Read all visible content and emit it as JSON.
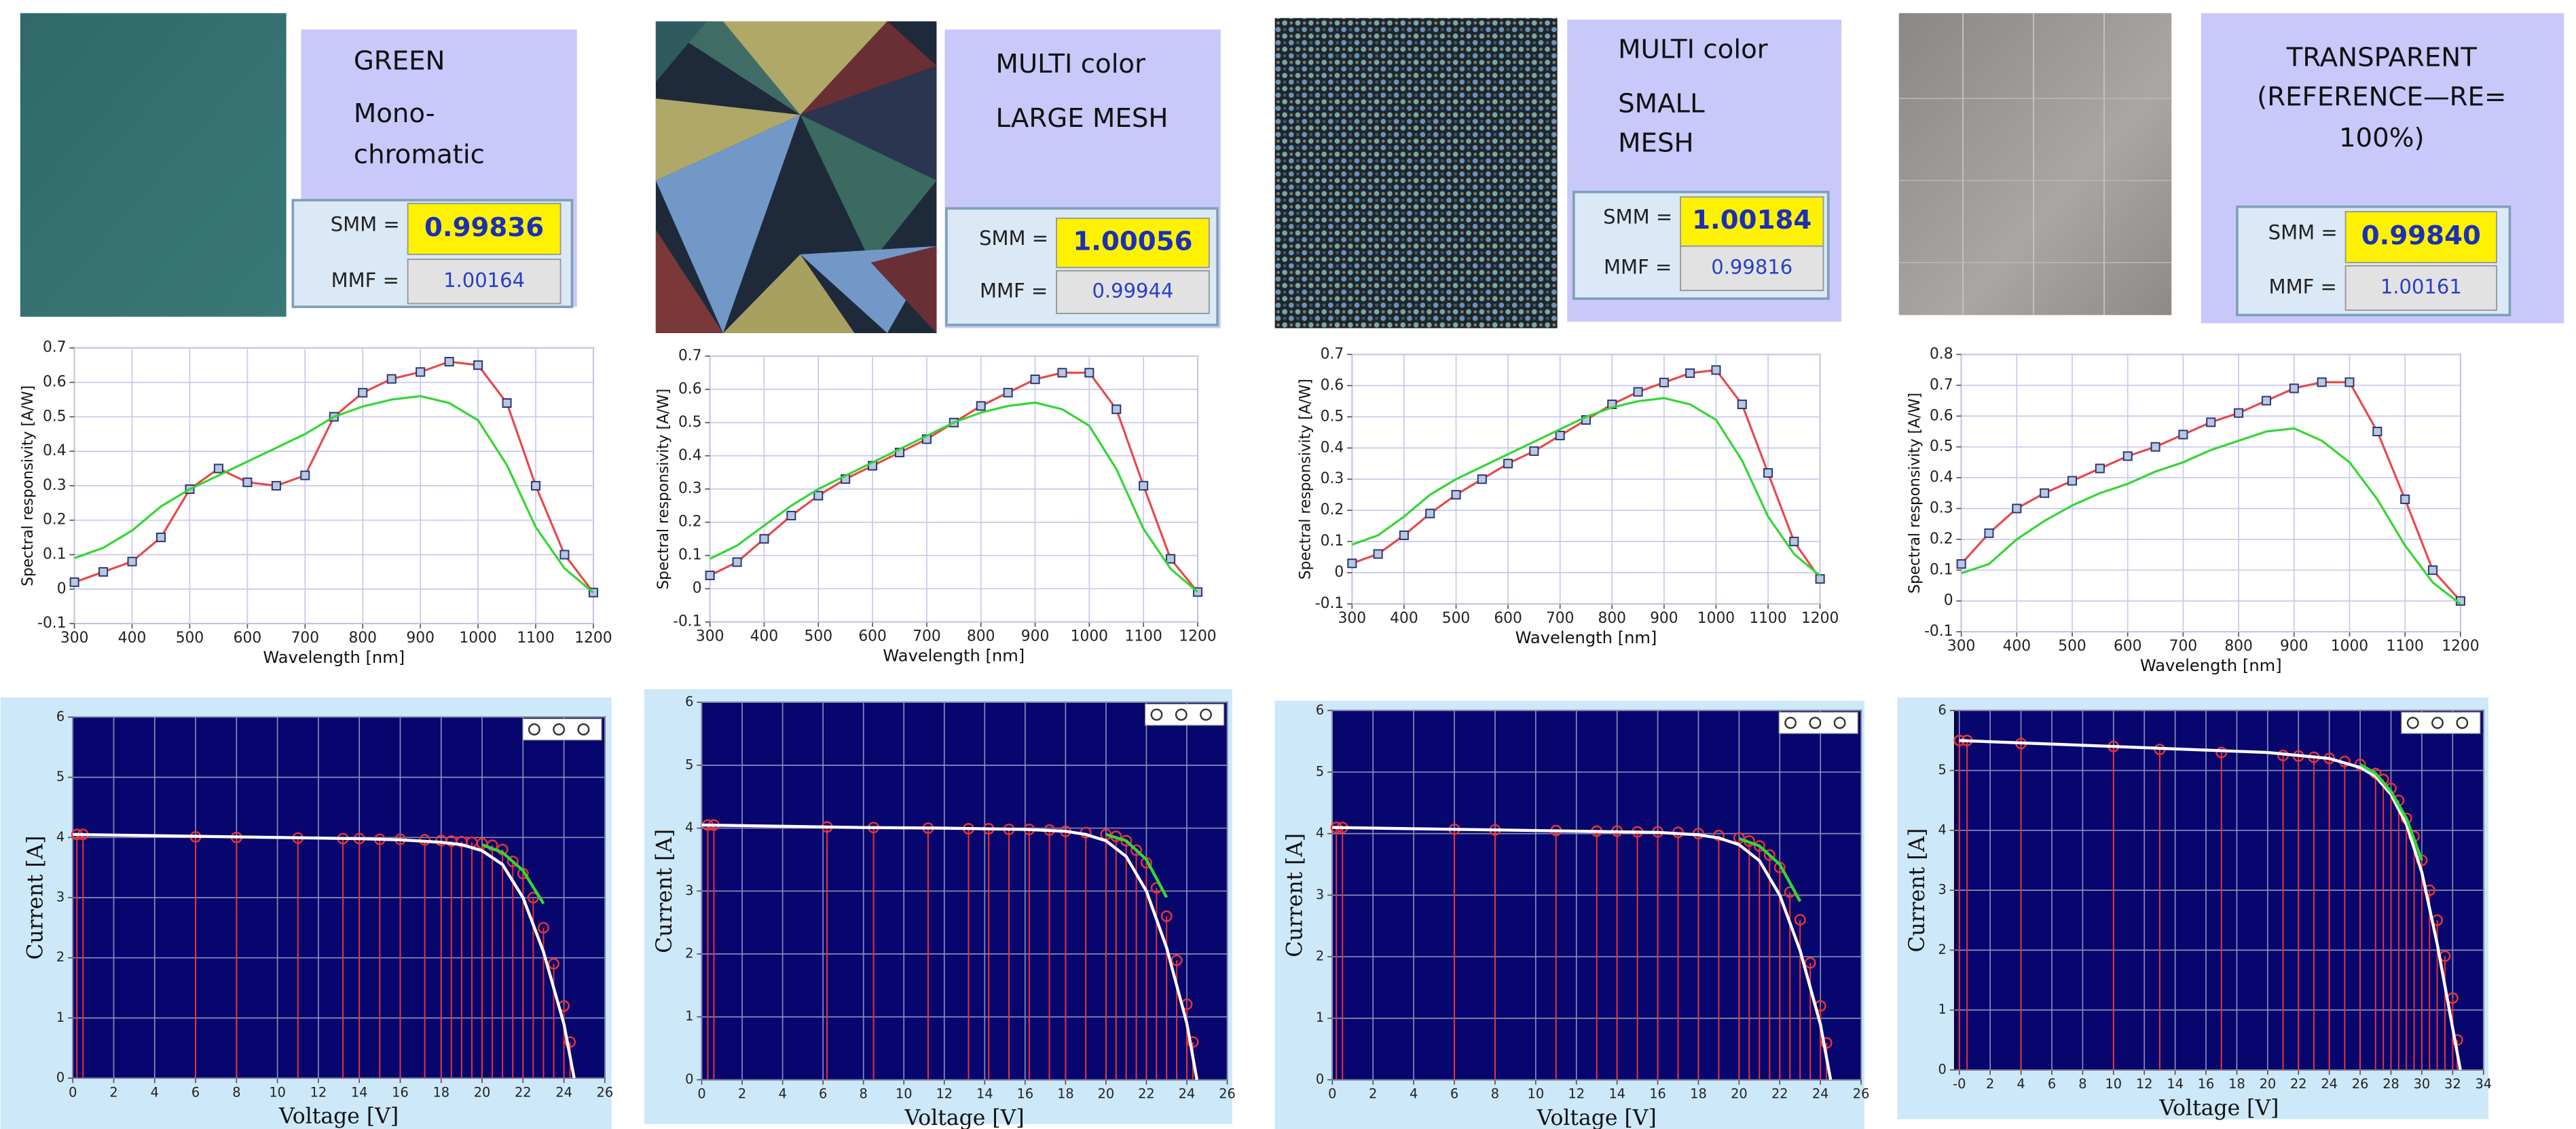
{
  "panels": [
    {
      "lines": [
        "GREEN",
        "Mono-",
        "chromatic"
      ],
      "smm_label": "SMM =",
      "smm": "0.99836",
      "mmf_label": "MMF =",
      "mmf": "1.00164"
    },
    {
      "lines": [
        "MULTI color",
        "LARGE MESH"
      ],
      "smm_label": "SMM =",
      "smm": "1.00056",
      "mmf_label": "MMF =",
      "mmf": "0.99944"
    },
    {
      "lines": [
        "MULTI color",
        "SMALL",
        "MESH"
      ],
      "smm_label": "SMM =",
      "smm": "1.00184",
      "mmf_label": "MMF =",
      "mmf": "0.99816"
    },
    {
      "lines": [
        "TRANSPARENT",
        "(REFERENCE—RE=",
        "100%)"
      ],
      "smm_label": "SMM =",
      "smm": "0.99840",
      "mmf_label": "MMF =",
      "mmf": "1.00161"
    }
  ],
  "chart_data": [
    {
      "type": "line",
      "xlabel": "Wavelength [nm]",
      "ylabel": "Spectral responsivity [A/W]",
      "background": "#ffffff",
      "grid": true,
      "grid_color": "#c8c8ee",
      "x": [
        300,
        350,
        400,
        450,
        500,
        550,
        600,
        650,
        700,
        750,
        800,
        850,
        900,
        950,
        1000,
        1050,
        1100,
        1150,
        1200
      ],
      "xlim": [
        300,
        1200
      ],
      "xticks": [
        300,
        400,
        500,
        600,
        700,
        800,
        900,
        1000,
        1100,
        1200
      ],
      "ylim": [
        -0.1,
        0.7
      ],
      "yticks": [
        -0.1,
        0,
        0.1,
        0.2,
        0.3,
        0.4,
        0.5,
        0.6,
        0.7
      ],
      "series": [
        {
          "color": "#e84848",
          "marker": "square",
          "values": [
            0.02,
            0.05,
            0.08,
            0.15,
            0.29,
            0.35,
            0.31,
            0.3,
            0.33,
            0.5,
            0.57,
            0.61,
            0.63,
            0.66,
            0.65,
            0.54,
            0.3,
            0.1,
            -0.01
          ]
        },
        {
          "color": "#33d633",
          "values": [
            0.09,
            0.12,
            0.17,
            0.24,
            0.29,
            0.33,
            0.37,
            0.41,
            0.45,
            0.5,
            0.53,
            0.55,
            0.56,
            0.54,
            0.49,
            0.36,
            0.18,
            0.06,
            -0.01
          ]
        }
      ]
    },
    {
      "type": "line",
      "xlabel": "Wavelength [nm]",
      "ylabel": "Spectral responsivity [A/W]",
      "background": "#ffffff",
      "grid": true,
      "grid_color": "#c8c8ee",
      "x": [
        300,
        350,
        400,
        450,
        500,
        550,
        600,
        650,
        700,
        750,
        800,
        850,
        900,
        950,
        1000,
        1050,
        1100,
        1150,
        1200
      ],
      "xlim": [
        300,
        1200
      ],
      "xticks": [
        300,
        400,
        500,
        600,
        700,
        800,
        900,
        1000,
        1100,
        1200
      ],
      "ylim": [
        -0.1,
        0.7
      ],
      "yticks": [
        -0.1,
        0,
        0.1,
        0.2,
        0.3,
        0.4,
        0.5,
        0.6,
        0.7
      ],
      "series": [
        {
          "color": "#e84848",
          "marker": "square",
          "values": [
            0.04,
            0.08,
            0.15,
            0.22,
            0.28,
            0.33,
            0.37,
            0.41,
            0.45,
            0.5,
            0.55,
            0.59,
            0.63,
            0.65,
            0.65,
            0.54,
            0.31,
            0.09,
            -0.01
          ]
        },
        {
          "color": "#33d633",
          "values": [
            0.09,
            0.13,
            0.19,
            0.25,
            0.3,
            0.34,
            0.38,
            0.42,
            0.46,
            0.5,
            0.53,
            0.55,
            0.56,
            0.54,
            0.49,
            0.36,
            0.18,
            0.06,
            -0.01
          ]
        }
      ]
    },
    {
      "type": "line",
      "xlabel": "Wavelength [nm]",
      "ylabel": "Spectral responsivity [A/W]",
      "background": "#ffffff",
      "grid": true,
      "grid_color": "#c8c8ee",
      "x": [
        300,
        350,
        400,
        450,
        500,
        550,
        600,
        650,
        700,
        750,
        800,
        850,
        900,
        950,
        1000,
        1050,
        1100,
        1150,
        1200
      ],
      "xlim": [
        300,
        1200
      ],
      "xticks": [
        300,
        400,
        500,
        600,
        700,
        800,
        900,
        1000,
        1100,
        1200
      ],
      "ylim": [
        -0.1,
        0.7
      ],
      "yticks": [
        -0.1,
        0,
        0.1,
        0.2,
        0.3,
        0.4,
        0.5,
        0.6,
        0.7
      ],
      "series": [
        {
          "color": "#e84848",
          "marker": "square",
          "values": [
            0.03,
            0.06,
            0.12,
            0.19,
            0.25,
            0.3,
            0.35,
            0.39,
            0.44,
            0.49,
            0.54,
            0.58,
            0.61,
            0.64,
            0.65,
            0.54,
            0.32,
            0.1,
            -0.02
          ]
        },
        {
          "color": "#33d633",
          "values": [
            0.09,
            0.12,
            0.18,
            0.25,
            0.3,
            0.34,
            0.38,
            0.42,
            0.46,
            0.5,
            0.53,
            0.55,
            0.56,
            0.54,
            0.49,
            0.36,
            0.18,
            0.06,
            -0.01
          ]
        }
      ]
    },
    {
      "type": "line",
      "xlabel": "Wavelength [nm]",
      "ylabel": "Spectral responsivity [A/W]",
      "background": "#ffffff",
      "grid": true,
      "grid_color": "#c8c8ee",
      "x": [
        300,
        350,
        400,
        450,
        500,
        550,
        600,
        650,
        700,
        750,
        800,
        850,
        900,
        950,
        1000,
        1050,
        1100,
        1150,
        1200
      ],
      "xlim": [
        300,
        1200
      ],
      "xticks": [
        300,
        400,
        500,
        600,
        700,
        800,
        900,
        1000,
        1100,
        1200
      ],
      "ylim": [
        -0.1,
        0.8
      ],
      "yticks": [
        -0.1,
        0,
        0.1,
        0.2,
        0.3,
        0.4,
        0.5,
        0.6,
        0.7,
        0.8
      ],
      "series": [
        {
          "color": "#e84848",
          "marker": "square",
          "values": [
            0.12,
            0.22,
            0.3,
            0.35,
            0.39,
            0.43,
            0.47,
            0.5,
            0.54,
            0.58,
            0.61,
            0.65,
            0.69,
            0.71,
            0.71,
            0.55,
            0.33,
            0.1,
            0.0
          ]
        },
        {
          "color": "#33d633",
          "values": [
            0.09,
            0.12,
            0.2,
            0.26,
            0.31,
            0.35,
            0.38,
            0.42,
            0.45,
            0.49,
            0.52,
            0.55,
            0.56,
            0.52,
            0.45,
            0.33,
            0.18,
            0.06,
            -0.01
          ]
        }
      ]
    },
    {
      "type": "line",
      "xlabel": "Voltage [V]",
      "ylabel": "Current [A]",
      "background": "#06066e",
      "grid": true,
      "grid_color": "#8a8ab8",
      "xlim": [
        0,
        26
      ],
      "xticks": [
        0,
        2,
        4,
        6,
        8,
        10,
        12,
        14,
        16,
        18,
        20,
        22,
        24,
        26
      ],
      "ylim": [
        0,
        6
      ],
      "yticks": [
        0,
        1,
        2,
        3,
        4,
        5,
        6
      ],
      "series": [
        {
          "color": "#ee3333",
          "marker": "circle",
          "stems": true,
          "line": false,
          "x": [
            0.2,
            0.5,
            6,
            8,
            11,
            13.2,
            14,
            15,
            16,
            17.2,
            18,
            18.5,
            19,
            19.5,
            20,
            20.5,
            21,
            21.5,
            22,
            22.5,
            23,
            23.5,
            24,
            24.3
          ],
          "values": [
            4.05,
            4.05,
            4.01,
            4.0,
            3.99,
            3.98,
            3.98,
            3.97,
            3.97,
            3.96,
            3.95,
            3.94,
            3.93,
            3.92,
            3.9,
            3.87,
            3.8,
            3.6,
            3.4,
            3.0,
            2.5,
            1.9,
            1.2,
            0.6
          ]
        },
        {
          "color": "#ffffff",
          "x": [
            0,
            2,
            4,
            6,
            8,
            10,
            12,
            14,
            16,
            18,
            19,
            20,
            21,
            22,
            23,
            24,
            24.5
          ],
          "values": [
            4.05,
            4.04,
            4.03,
            4.02,
            4.01,
            4.0,
            3.99,
            3.98,
            3.96,
            3.92,
            3.88,
            3.78,
            3.55,
            3.0,
            2.1,
            0.9,
            0
          ]
        },
        {
          "color": "#33d633",
          "x": [
            20,
            21,
            22,
            23
          ],
          "values": [
            3.88,
            3.75,
            3.45,
            2.9
          ]
        }
      ]
    },
    {
      "type": "line",
      "xlabel": "Voltage [V]",
      "ylabel": "Current [A]",
      "background": "#06066e",
      "grid": true,
      "grid_color": "#8a8ab8",
      "xlim": [
        0,
        26
      ],
      "xticks": [
        0,
        2,
        4,
        6,
        8,
        10,
        12,
        14,
        16,
        18,
        20,
        22,
        24,
        26
      ],
      "ylim": [
        0,
        6
      ],
      "yticks": [
        0,
        1,
        2,
        3,
        4,
        5,
        6
      ],
      "series": [
        {
          "color": "#ee3333",
          "marker": "circle",
          "stems": true,
          "line": false,
          "x": [
            0.3,
            0.6,
            6.2,
            8.5,
            11.2,
            13.2,
            14.2,
            15.2,
            16.2,
            17.2,
            18,
            19,
            20,
            20.5,
            21,
            21.5,
            22,
            22.5,
            23,
            23.5,
            24,
            24.3
          ],
          "values": [
            4.05,
            4.05,
            4.02,
            4.01,
            4.0,
            3.99,
            3.99,
            3.98,
            3.98,
            3.97,
            3.95,
            3.93,
            3.9,
            3.87,
            3.8,
            3.65,
            3.45,
            3.05,
            2.6,
            1.9,
            1.2,
            0.6
          ]
        },
        {
          "color": "#ffffff",
          "x": [
            0,
            4,
            8,
            12,
            16,
            18,
            19,
            20,
            21,
            22,
            23,
            24,
            24.5
          ],
          "values": [
            4.05,
            4.03,
            4.01,
            4.0,
            3.98,
            3.95,
            3.9,
            3.8,
            3.55,
            3.0,
            2.1,
            0.9,
            0
          ]
        },
        {
          "color": "#33d633",
          "x": [
            20,
            21,
            22,
            23
          ],
          "values": [
            3.9,
            3.8,
            3.5,
            2.9
          ]
        }
      ]
    },
    {
      "type": "line",
      "xlabel": "Voltage [V]",
      "ylabel": "Current [A]",
      "background": "#06066e",
      "grid": true,
      "grid_color": "#8a8ab8",
      "xlim": [
        0,
        26
      ],
      "xticks": [
        0,
        2,
        4,
        6,
        8,
        10,
        12,
        14,
        16,
        18,
        20,
        22,
        24,
        26
      ],
      "ylim": [
        0,
        6
      ],
      "yticks": [
        0,
        1,
        2,
        3,
        4,
        5,
        6
      ],
      "series": [
        {
          "color": "#ee3333",
          "marker": "circle",
          "stems": true,
          "line": false,
          "x": [
            0.2,
            0.5,
            6,
            8,
            11,
            13,
            14,
            15,
            16,
            17,
            18,
            19,
            20,
            20.5,
            21,
            21.5,
            22,
            22.5,
            23,
            23.5,
            24,
            24.3
          ],
          "values": [
            4.1,
            4.1,
            4.07,
            4.06,
            4.05,
            4.04,
            4.04,
            4.03,
            4.03,
            4.02,
            4.0,
            3.97,
            3.93,
            3.88,
            3.8,
            3.65,
            3.45,
            3.05,
            2.6,
            1.9,
            1.2,
            0.6
          ]
        },
        {
          "color": "#ffffff",
          "x": [
            0,
            4,
            8,
            12,
            16,
            18,
            19,
            20,
            21,
            22,
            23,
            24,
            24.5
          ],
          "values": [
            4.1,
            4.08,
            4.06,
            4.04,
            4.02,
            3.98,
            3.93,
            3.82,
            3.56,
            3.0,
            2.1,
            0.9,
            0
          ]
        },
        {
          "color": "#33d633",
          "x": [
            20,
            21,
            22,
            23
          ],
          "values": [
            3.92,
            3.8,
            3.5,
            2.9
          ]
        }
      ]
    },
    {
      "type": "line",
      "xlabel": "Voltage [V]",
      "ylabel": "Current [A]",
      "background": "#06066e",
      "grid": true,
      "grid_color": "#8a8ab8",
      "xlim": [
        -0.3,
        34
      ],
      "xticks": [
        {
          "value": 0,
          "label": "-0"
        },
        2,
        4,
        6,
        8,
        10,
        12,
        14,
        16,
        18,
        20,
        22,
        24,
        26,
        28,
        30,
        32,
        34
      ],
      "ylim": [
        0,
        6
      ],
      "yticks": [
        0,
        1,
        2,
        3,
        4,
        5,
        6
      ],
      "series": [
        {
          "color": "#ee3333",
          "marker": "circle",
          "stems": true,
          "line": false,
          "x": [
            0,
            0.5,
            4,
            10,
            13,
            17,
            21,
            22,
            23,
            24,
            25,
            26,
            27,
            27.5,
            28,
            28.5,
            29,
            29.5,
            30,
            30.5,
            31,
            31.5,
            32,
            32.3
          ],
          "values": [
            5.5,
            5.5,
            5.45,
            5.4,
            5.35,
            5.3,
            5.25,
            5.24,
            5.22,
            5.2,
            5.15,
            5.1,
            4.95,
            4.85,
            4.7,
            4.5,
            4.2,
            3.9,
            3.5,
            3.0,
            2.5,
            1.9,
            1.2,
            0.5
          ]
        },
        {
          "color": "#ffffff",
          "x": [
            0,
            5,
            10,
            15,
            20,
            24,
            26,
            27,
            28,
            29,
            30,
            31,
            32,
            32.5
          ],
          "values": [
            5.5,
            5.45,
            5.4,
            5.35,
            5.3,
            5.2,
            5.05,
            4.9,
            4.6,
            4.1,
            3.3,
            2.1,
            0.7,
            0
          ]
        },
        {
          "color": "#33d633",
          "x": [
            26,
            27,
            28,
            29,
            30
          ],
          "values": [
            5.1,
            4.95,
            4.65,
            4.2,
            3.5
          ]
        }
      ]
    }
  ]
}
